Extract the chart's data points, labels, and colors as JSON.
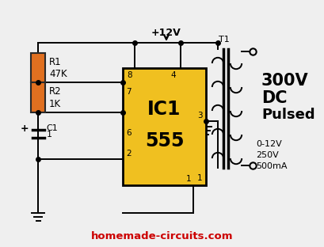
{
  "bg_color": "#efefef",
  "ic_color": "#f0c020",
  "ic_border": "#000000",
  "resistor_color": "#e07020",
  "wire_color": "#000000",
  "text_color": "#000000",
  "red_text": "#cc0000",
  "ic_label1": "IC1",
  "ic_label2": "555",
  "r1_label1": "R1",
  "r1_label2": "47K",
  "r2_label1": "R2",
  "r2_label2": "1K",
  "c1_label1": "C1",
  "c1_label2": "1",
  "output_label1": "300V",
  "output_label2": "DC",
  "output_label3": "Pulsed",
  "transformer_label": "T1",
  "secondary_label1": "0-12V",
  "secondary_label2": "250V",
  "secondary_label3": "500mA",
  "supply_label": "+12V",
  "website": "homemade-circuits.com",
  "figsize": [
    4.09,
    3.12
  ],
  "dpi": 100
}
